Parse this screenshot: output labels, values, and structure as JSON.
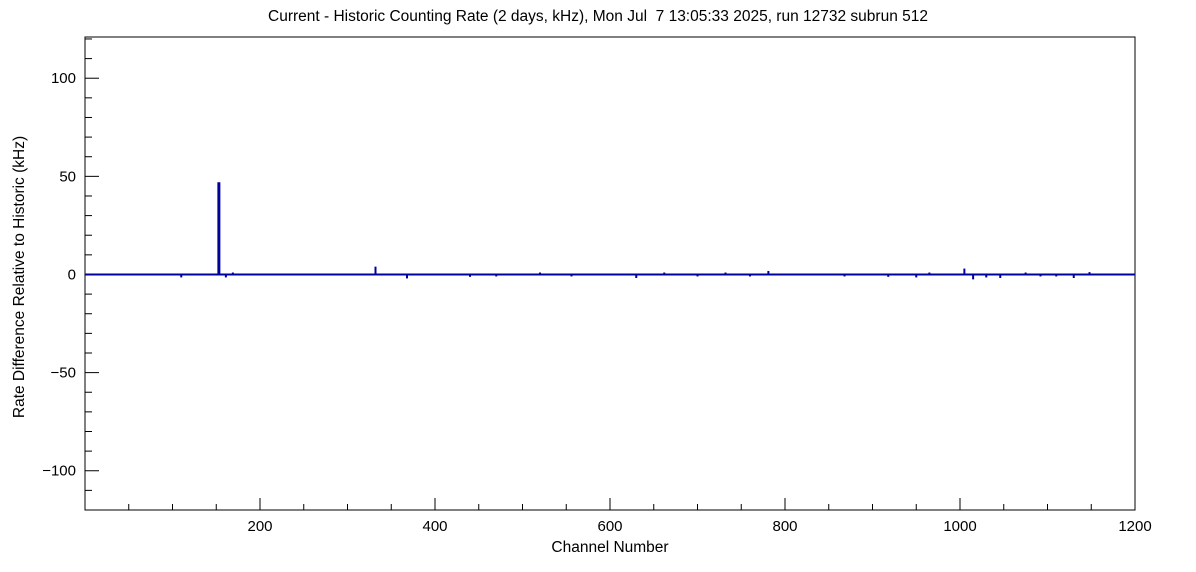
{
  "chart_data": {
    "type": "line",
    "title": "Current - Historic Counting Rate (2 days, kHz), Mon Jul  7 13:05:33 2025, run 12732 subrun 512",
    "xlabel": "Channel Number",
    "ylabel": "Rate Difference Relative to Historic (kHz)",
    "xlim": [
      0,
      1200
    ],
    "ylim": [
      -120,
      121
    ],
    "x_major_step": 200,
    "x_minor_step": 50,
    "y_major_step": 50,
    "y_minor_step": 10,
    "x_ticks": {
      "values": [
        200,
        400,
        600,
        800,
        1000,
        1200
      ],
      "labels": [
        "200",
        "400",
        "600",
        "800",
        "1000",
        "1200"
      ]
    },
    "y_ticks": {
      "values": [
        -100,
        -50,
        0,
        50,
        100
      ],
      "labels": [
        "−100",
        "−50",
        "0",
        "50",
        "100"
      ]
    },
    "grid": false,
    "legend": "none",
    "line_color": "#00009a",
    "frame_color": "#000000",
    "baseline": 0,
    "spikes": [
      {
        "x": 110,
        "y": -1.5
      },
      {
        "x": 153,
        "y": 47,
        "w": 3
      },
      {
        "x": 161,
        "y": -1.5
      },
      {
        "x": 169,
        "y": 1
      },
      {
        "x": 332,
        "y": 4
      },
      {
        "x": 368,
        "y": -2
      },
      {
        "x": 440,
        "y": -1.2
      },
      {
        "x": 470,
        "y": -1
      },
      {
        "x": 520,
        "y": 1
      },
      {
        "x": 556,
        "y": -1
      },
      {
        "x": 630,
        "y": -1.8
      },
      {
        "x": 662,
        "y": 1
      },
      {
        "x": 700,
        "y": -1
      },
      {
        "x": 732,
        "y": 1
      },
      {
        "x": 760,
        "y": -1
      },
      {
        "x": 781,
        "y": 1.8
      },
      {
        "x": 868,
        "y": -1
      },
      {
        "x": 918,
        "y": -1.2
      },
      {
        "x": 950,
        "y": -1.5
      },
      {
        "x": 965,
        "y": 1
      },
      {
        "x": 1005,
        "y": 3
      },
      {
        "x": 1015,
        "y": -2.5
      },
      {
        "x": 1030,
        "y": -1.5
      },
      {
        "x": 1046,
        "y": -1.8
      },
      {
        "x": 1075,
        "y": 1
      },
      {
        "x": 1092,
        "y": -1
      },
      {
        "x": 1110,
        "y": -1
      },
      {
        "x": 1130,
        "y": -1.8
      },
      {
        "x": 1148,
        "y": 1.2
      }
    ]
  }
}
